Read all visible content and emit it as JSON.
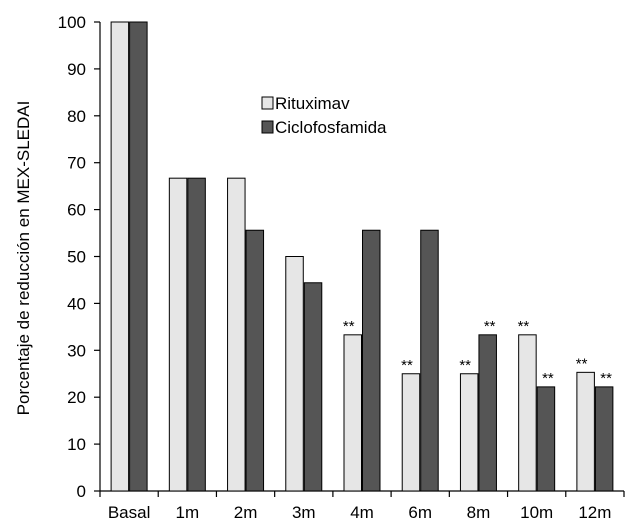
{
  "chart_data": {
    "type": "bar",
    "title": "",
    "xlabel": "",
    "ylabel": "Porcentaje de reducción en MEX-SLEDAI",
    "ylim": [
      0,
      100
    ],
    "yticks": [
      0,
      10,
      20,
      30,
      40,
      50,
      60,
      70,
      80,
      90,
      100
    ],
    "grid": false,
    "legend_position": "top-center",
    "categories": [
      "Basal",
      "1m",
      "2m",
      "3m",
      "4m",
      "6m",
      "8m",
      "10m",
      "12m"
    ],
    "series": [
      {
        "name": "Rituximav",
        "color": "#e6e6e6",
        "values": [
          100,
          66.7,
          66.7,
          50,
          33.3,
          25,
          25,
          33.3,
          25.3
        ],
        "annotations": [
          "",
          "",
          "",
          "",
          "**",
          "**",
          "**",
          "**",
          "**"
        ]
      },
      {
        "name": "Ciclofosfamida",
        "color": "#555555",
        "values": [
          100,
          66.7,
          55.6,
          44.4,
          55.6,
          55.6,
          33.3,
          22.2,
          22.2
        ],
        "annotations": [
          "",
          "",
          "",
          "",
          "",
          "",
          "**",
          "**",
          "**"
        ]
      }
    ]
  }
}
